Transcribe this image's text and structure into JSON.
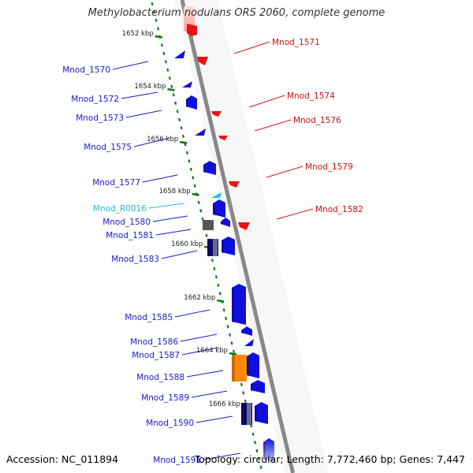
{
  "title": "Methylobacterium nodulans ORS 2060, complete genome",
  "footer": {
    "accession": "Accession: NC_011894",
    "summary": "Topology: circular; Length: 7,772,460 bp; Genes: 7,447"
  },
  "colors": {
    "minus_strand_gene": "#1010dd",
    "plus_strand_gene": "#ee1111",
    "rna_gene": "#22bbee",
    "pseudogene": "#555555",
    "dark_gene": "#0a0a66",
    "highlight_gene": "#ff8800",
    "ruler_tick": "#117711",
    "axis": "#888888"
  },
  "kbp_ticks": [
    {
      "label": "1652 kbp"
    },
    {
      "label": "1654 kbp"
    },
    {
      "label": "1656 kbp"
    },
    {
      "label": "1658 kbp"
    },
    {
      "label": "1660 kbp"
    },
    {
      "label": "1662 kbp"
    },
    {
      "label": "1664 kbp"
    },
    {
      "label": "1666 kbp"
    }
  ],
  "left_genes": [
    {
      "label": "Mnod_1570",
      "kind": "gene"
    },
    {
      "label": "Mnod_1572",
      "kind": "gene"
    },
    {
      "label": "Mnod_1573",
      "kind": "gene"
    },
    {
      "label": "Mnod_1575",
      "kind": "gene"
    },
    {
      "label": "Mnod_1577",
      "kind": "gene"
    },
    {
      "label": "Mnod_R0016",
      "kind": "rna"
    },
    {
      "label": "Mnod_1580",
      "kind": "gene"
    },
    {
      "label": "Mnod_1581",
      "kind": "gene"
    },
    {
      "label": "Mnod_1583",
      "kind": "gene"
    },
    {
      "label": "Mnod_1585",
      "kind": "gene"
    },
    {
      "label": "Mnod_1586",
      "kind": "gene"
    },
    {
      "label": "Mnod_1587",
      "kind": "gene"
    },
    {
      "label": "Mnod_1588",
      "kind": "gene"
    },
    {
      "label": "Mnod_1589",
      "kind": "gene"
    },
    {
      "label": "Mnod_1590",
      "kind": "gene"
    },
    {
      "label": "Mnod_1591",
      "kind": "gene"
    }
  ],
  "right_genes": [
    {
      "label": "Mnod_1571"
    },
    {
      "label": "Mnod_1574"
    },
    {
      "label": "Mnod_1576"
    },
    {
      "label": "Mnod_1579"
    },
    {
      "label": "Mnod_1582"
    }
  ]
}
